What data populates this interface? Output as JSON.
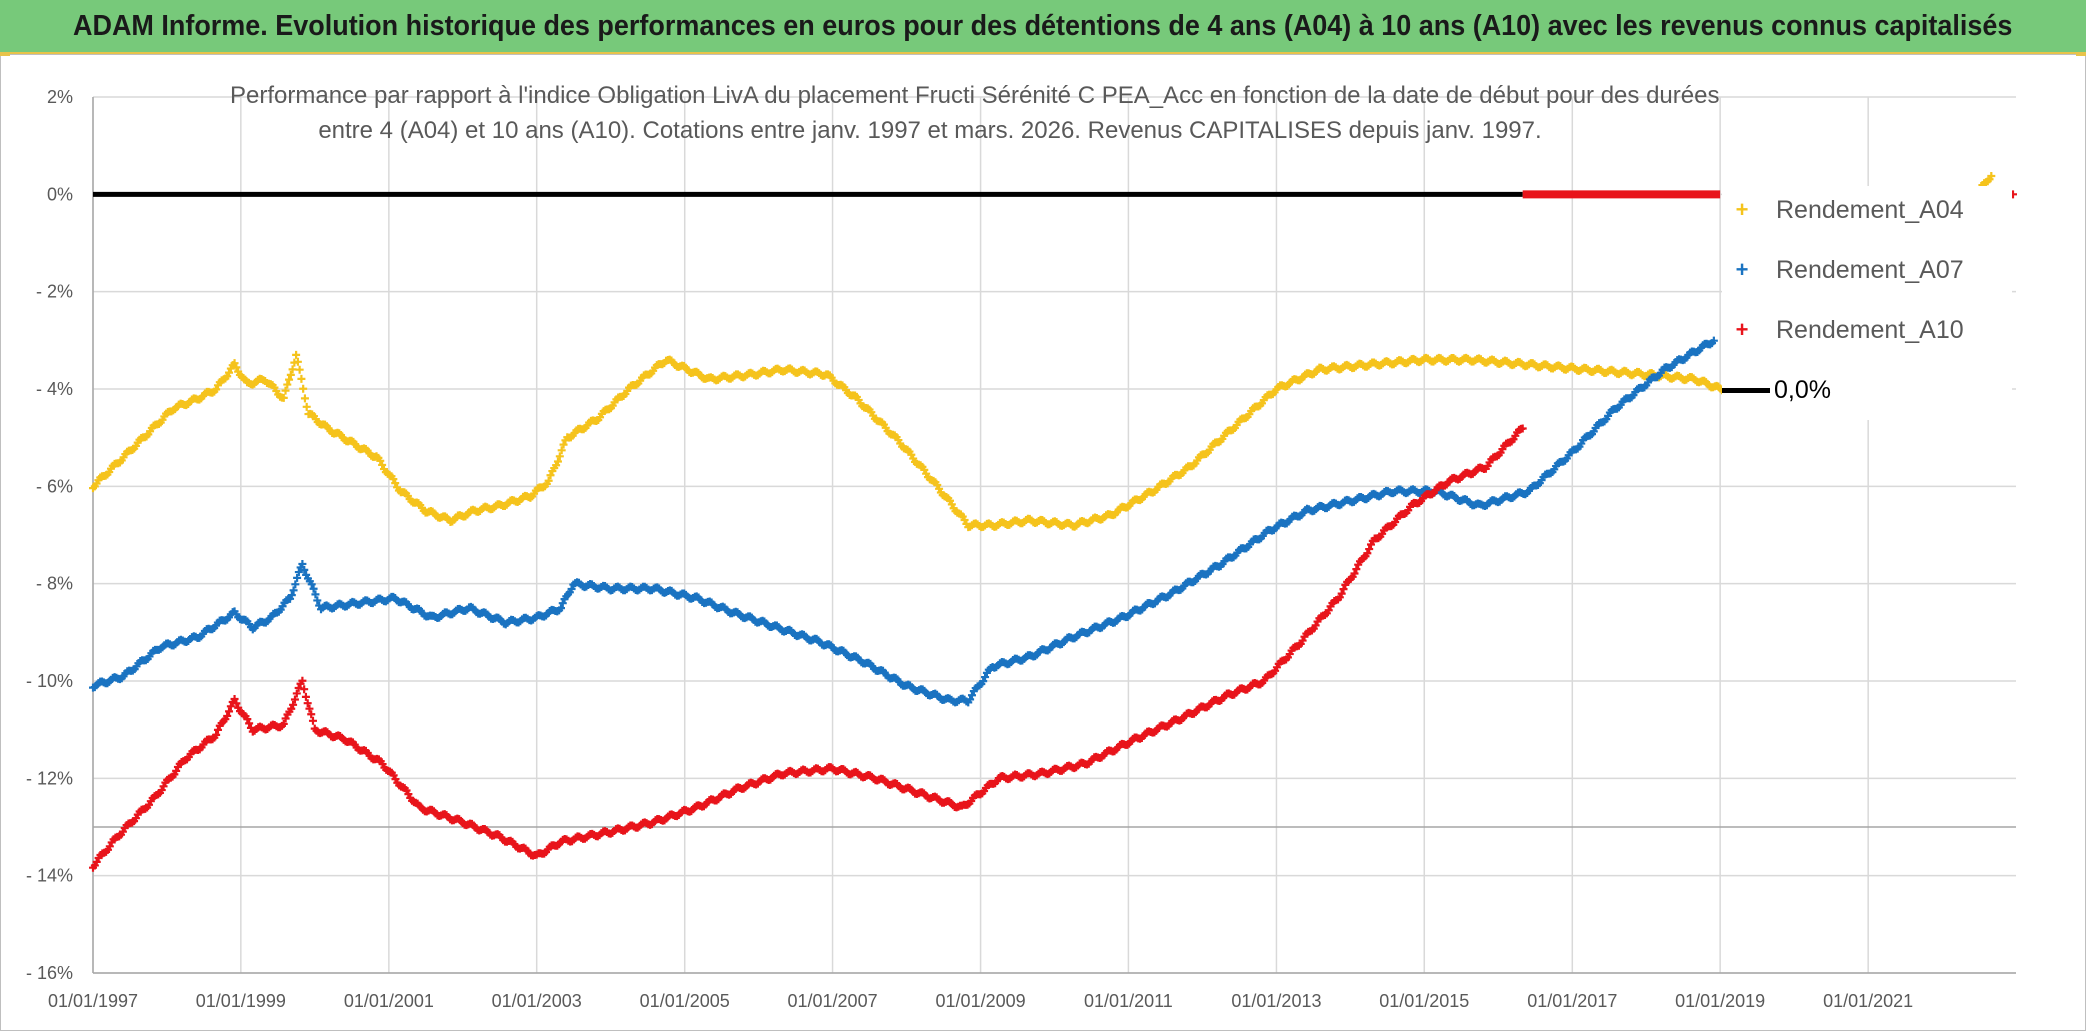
{
  "banner": {
    "title": "ADAM Informe. Evolution historique des performances en euros pour des détentions de 4 ans (A04) à 10 ans (A10) avec les revenus connus capitalisés"
  },
  "colors": {
    "banner_bg": "#77c97a",
    "accent": "#e8c34a",
    "a04": "#f5c31c",
    "a07": "#1a73c1",
    "a10": "#e8141b",
    "zero": "#000000",
    "grid": "#d9d9d9"
  },
  "chart_data": {
    "type": "scatter",
    "title_line1": "Performance par rapport à l'indice Obligation LivA  du placement Fructi Sérénité C PEA_Acc en fonction de la date de début pour des durées",
    "title_line2": "entre 4 (A04) et 10 ans (A10). Cotations entre janv. 1997 et mars. 2026. Revenus CAPITALISES depuis janv. 1997.",
    "xlabel": "",
    "ylabel": "",
    "x_is_date": true,
    "xlim": [
      "1997-01-01",
      "2023-01-01"
    ],
    "ylim": [
      -16,
      2
    ],
    "y_ticks": [
      2,
      0,
      -2,
      -4,
      -6,
      -8,
      -10,
      -12,
      -14,
      -16
    ],
    "y_tick_labels": [
      "2%",
      "0%",
      "- 2%",
      "- 4%",
      "- 6%",
      "- 8%",
      "- 10%",
      "- 12%",
      "- 14%",
      "- 16%"
    ],
    "x_ticks": [
      "1997-01-01",
      "1999-01-01",
      "2001-01-01",
      "2003-01-01",
      "2005-01-01",
      "2007-01-01",
      "2009-01-01",
      "2011-01-01",
      "2013-01-01",
      "2015-01-01",
      "2017-01-01",
      "2019-01-01",
      "2021-01-01"
    ],
    "x_tick_labels": [
      "01/01/1997",
      "01/01/1999",
      "01/01/2001",
      "01/01/2003",
      "01/01/2005",
      "01/01/2007",
      "01/01/2009",
      "01/01/2011",
      "01/01/2013",
      "01/01/2015",
      "01/01/2017",
      "01/01/2019",
      "01/01/2021"
    ],
    "grid": true,
    "legend_position": "right",
    "series": [
      {
        "name": "Rendement_A04",
        "color": "#f5c31c",
        "marker": "+",
        "points": [
          [
            "1997-01-01",
            -6.0
          ],
          [
            "1997-06-01",
            -5.4
          ],
          [
            "1997-10-01",
            -4.9
          ],
          [
            "1998-02-01",
            -4.4
          ],
          [
            "1998-06-01",
            -4.2
          ],
          [
            "1998-09-01",
            -4.0
          ],
          [
            "1998-12-01",
            -3.5
          ],
          [
            "1999-02-01",
            -3.9
          ],
          [
            "1999-05-01",
            -3.8
          ],
          [
            "1999-08-01",
            -4.2
          ],
          [
            "1999-10-01",
            -3.3
          ],
          [
            "1999-12-01",
            -4.5
          ],
          [
            "2000-03-01",
            -4.8
          ],
          [
            "2000-07-01",
            -5.1
          ],
          [
            "2000-11-01",
            -5.4
          ],
          [
            "2001-03-01",
            -6.1
          ],
          [
            "2001-07-01",
            -6.5
          ],
          [
            "2001-11-01",
            -6.7
          ],
          [
            "2002-03-01",
            -6.5
          ],
          [
            "2002-07-01",
            -6.4
          ],
          [
            "2002-12-01",
            -6.2
          ],
          [
            "2003-03-01",
            -5.9
          ],
          [
            "2003-06-01",
            -5.0
          ],
          [
            "2003-11-01",
            -4.6
          ],
          [
            "2004-04-01",
            -4.0
          ],
          [
            "2004-10-01",
            -3.4
          ],
          [
            "2005-05-01",
            -3.8
          ],
          [
            "2005-12-01",
            -3.7
          ],
          [
            "2006-05-01",
            -3.6
          ],
          [
            "2006-12-01",
            -3.7
          ],
          [
            "2007-05-01",
            -4.2
          ],
          [
            "2007-12-01",
            -5.1
          ],
          [
            "2008-06-01",
            -6.0
          ],
          [
            "2008-11-01",
            -6.8
          ],
          [
            "2009-03-01",
            -6.8
          ],
          [
            "2009-09-01",
            -6.7
          ],
          [
            "2010-04-01",
            -6.8
          ],
          [
            "2010-10-01",
            -6.6
          ],
          [
            "2011-05-01",
            -6.1
          ],
          [
            "2011-11-01",
            -5.6
          ],
          [
            "2012-06-01",
            -4.8
          ],
          [
            "2013-01-01",
            -4.0
          ],
          [
            "2013-08-01",
            -3.6
          ],
          [
            "2014-04-01",
            -3.5
          ],
          [
            "2015-01-01",
            -3.4
          ],
          [
            "2015-09-01",
            -3.4
          ],
          [
            "2016-06-01",
            -3.5
          ],
          [
            "2017-03-01",
            -3.6
          ],
          [
            "2018-01-01",
            -3.7
          ],
          [
            "2018-09-01",
            -3.8
          ],
          [
            "2019-01-01",
            -4.0
          ],
          [
            "2019-06-01",
            -4.1
          ],
          [
            "2020-01-01",
            -4.2
          ],
          [
            "2020-08-01",
            -3.6
          ],
          [
            "2021-03-01",
            -2.6
          ],
          [
            "2021-10-01",
            -1.4
          ],
          [
            "2022-05-01",
            -0.3
          ],
          [
            "2022-09-01",
            0.4
          ]
        ]
      },
      {
        "name": "Rendement_A07",
        "color": "#1a73c1",
        "marker": "+",
        "points": [
          [
            "1997-01-01",
            -10.1
          ],
          [
            "1997-06-01",
            -9.9
          ],
          [
            "1997-12-01",
            -9.3
          ],
          [
            "1998-06-01",
            -9.1
          ],
          [
            "1998-12-01",
            -8.6
          ],
          [
            "1999-03-01",
            -8.9
          ],
          [
            "1999-06-01",
            -8.7
          ],
          [
            "1999-09-01",
            -8.3
          ],
          [
            "1999-11-01",
            -7.6
          ],
          [
            "2000-02-01",
            -8.5
          ],
          [
            "2000-08-01",
            -8.4
          ],
          [
            "2001-02-01",
            -8.3
          ],
          [
            "2001-08-01",
            -8.7
          ],
          [
            "2002-02-01",
            -8.5
          ],
          [
            "2002-08-01",
            -8.8
          ],
          [
            "2003-01-01",
            -8.7
          ],
          [
            "2003-05-01",
            -8.5
          ],
          [
            "2003-07-01",
            -8.0
          ],
          [
            "2004-01-01",
            -8.1
          ],
          [
            "2004-08-01",
            -8.1
          ],
          [
            "2005-03-01",
            -8.3
          ],
          [
            "2005-09-01",
            -8.6
          ],
          [
            "2006-04-01",
            -8.9
          ],
          [
            "2006-11-01",
            -9.2
          ],
          [
            "2007-06-01",
            -9.6
          ],
          [
            "2008-01-01",
            -10.1
          ],
          [
            "2008-08-01",
            -10.4
          ],
          [
            "2008-11-01",
            -10.4
          ],
          [
            "2009-03-01",
            -9.7
          ],
          [
            "2009-09-01",
            -9.5
          ],
          [
            "2010-04-01",
            -9.1
          ],
          [
            "2010-12-01",
            -8.7
          ],
          [
            "2011-08-01",
            -8.2
          ],
          [
            "2012-04-01",
            -7.6
          ],
          [
            "2012-12-01",
            -6.9
          ],
          [
            "2013-06-01",
            -6.5
          ],
          [
            "2014-01-01",
            -6.3
          ],
          [
            "2014-08-01",
            -6.1
          ],
          [
            "2015-03-01",
            -6.1
          ],
          [
            "2015-10-01",
            -6.4
          ],
          [
            "2016-06-01",
            -6.1
          ],
          [
            "2017-01-01",
            -5.3
          ],
          [
            "2017-08-01",
            -4.4
          ],
          [
            "2018-04-01",
            -3.6
          ],
          [
            "2018-12-01",
            -3.0
          ]
        ]
      },
      {
        "name": "Rendement_A10",
        "color": "#e8141b",
        "marker": "+",
        "points": [
          [
            "1997-01-01",
            -13.8
          ],
          [
            "1997-05-01",
            -13.2
          ],
          [
            "1997-11-01",
            -12.4
          ],
          [
            "1998-04-01",
            -11.6
          ],
          [
            "1998-09-01",
            -11.1
          ],
          [
            "1998-12-01",
            -10.4
          ],
          [
            "1999-03-01",
            -11.0
          ],
          [
            "1999-08-01",
            -10.9
          ],
          [
            "1999-11-01",
            -10.0
          ],
          [
            "2000-01-01",
            -11.0
          ],
          [
            "2000-06-01",
            -11.2
          ],
          [
            "2000-12-01",
            -11.7
          ],
          [
            "2001-06-01",
            -12.6
          ],
          [
            "2002-01-01",
            -12.9
          ],
          [
            "2002-07-01",
            -13.2
          ],
          [
            "2003-01-01",
            -13.6
          ],
          [
            "2003-05-01",
            -13.3
          ],
          [
            "2004-01-01",
            -13.1
          ],
          [
            "2004-08-01",
            -12.9
          ],
          [
            "2005-03-01",
            -12.6
          ],
          [
            "2005-10-01",
            -12.2
          ],
          [
            "2006-05-01",
            -11.9
          ],
          [
            "2007-01-01",
            -11.8
          ],
          [
            "2007-08-01",
            -12.0
          ],
          [
            "2008-03-01",
            -12.3
          ],
          [
            "2008-10-01",
            -12.6
          ],
          [
            "2009-04-01",
            -12.0
          ],
          [
            "2009-11-01",
            -11.9
          ],
          [
            "2010-06-01",
            -11.7
          ],
          [
            "2011-02-01",
            -11.2
          ],
          [
            "2011-09-01",
            -10.8
          ],
          [
            "2012-05-01",
            -10.3
          ],
          [
            "2012-11-01",
            -10.0
          ],
          [
            "2013-05-01",
            -9.2
          ],
          [
            "2013-11-01",
            -8.3
          ],
          [
            "2014-05-01",
            -7.1
          ],
          [
            "2014-11-01",
            -6.4
          ],
          [
            "2015-05-01",
            -5.9
          ],
          [
            "2015-11-01",
            -5.6
          ],
          [
            "2016-05-01",
            -4.8
          ]
        ]
      },
      {
        "name": "0,0%",
        "color": "#000000",
        "marker": "line",
        "points": [
          [
            "1997-01-01",
            0
          ],
          [
            "2016-05-01",
            0
          ]
        ]
      }
    ],
    "zero_red_segment": [
      [
        "2016-05-01",
        0
      ],
      [
        "2019-01-01",
        0
      ]
    ],
    "stray_red_point": [
      "2023-01-01",
      0.0
    ]
  }
}
